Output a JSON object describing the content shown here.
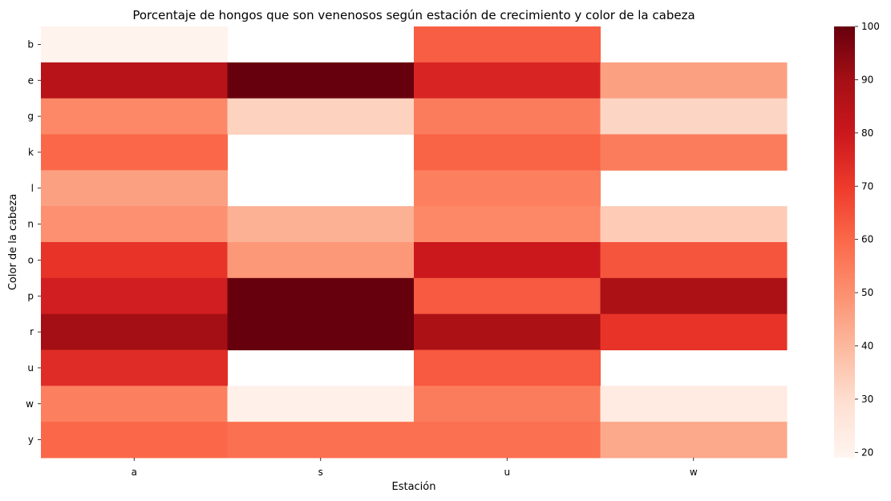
{
  "chart_data": {
    "type": "heatmap",
    "title": "Porcentaje de hongos que son venenosos según estación de crecimiento y color de la cabeza",
    "xlabel": "Estación",
    "ylabel": "Color de la cabeza",
    "x_categories": [
      "a",
      "s",
      "u",
      "w"
    ],
    "y_categories": [
      "b",
      "e",
      "g",
      "k",
      "l",
      "n",
      "o",
      "p",
      "r",
      "u",
      "w",
      "y"
    ],
    "values": [
      [
        20,
        null,
        62,
        null
      ],
      [
        85,
        100,
        76,
        46
      ],
      [
        52,
        33,
        55,
        32
      ],
      [
        60,
        null,
        61,
        55
      ],
      [
        46,
        null,
        54,
        null
      ],
      [
        50,
        42,
        52,
        35
      ],
      [
        72,
        48,
        80,
        64
      ],
      [
        78,
        100,
        63,
        88
      ],
      [
        90,
        100,
        88,
        72
      ],
      [
        74,
        null,
        63,
        null
      ],
      [
        54,
        21,
        55,
        24
      ],
      [
        60,
        58,
        58,
        44
      ]
    ],
    "colorbar": {
      "min": 19,
      "max": 100,
      "ticks": [
        20,
        30,
        40,
        50,
        60,
        70,
        80,
        90,
        100
      ],
      "colormap": "Reds"
    }
  }
}
